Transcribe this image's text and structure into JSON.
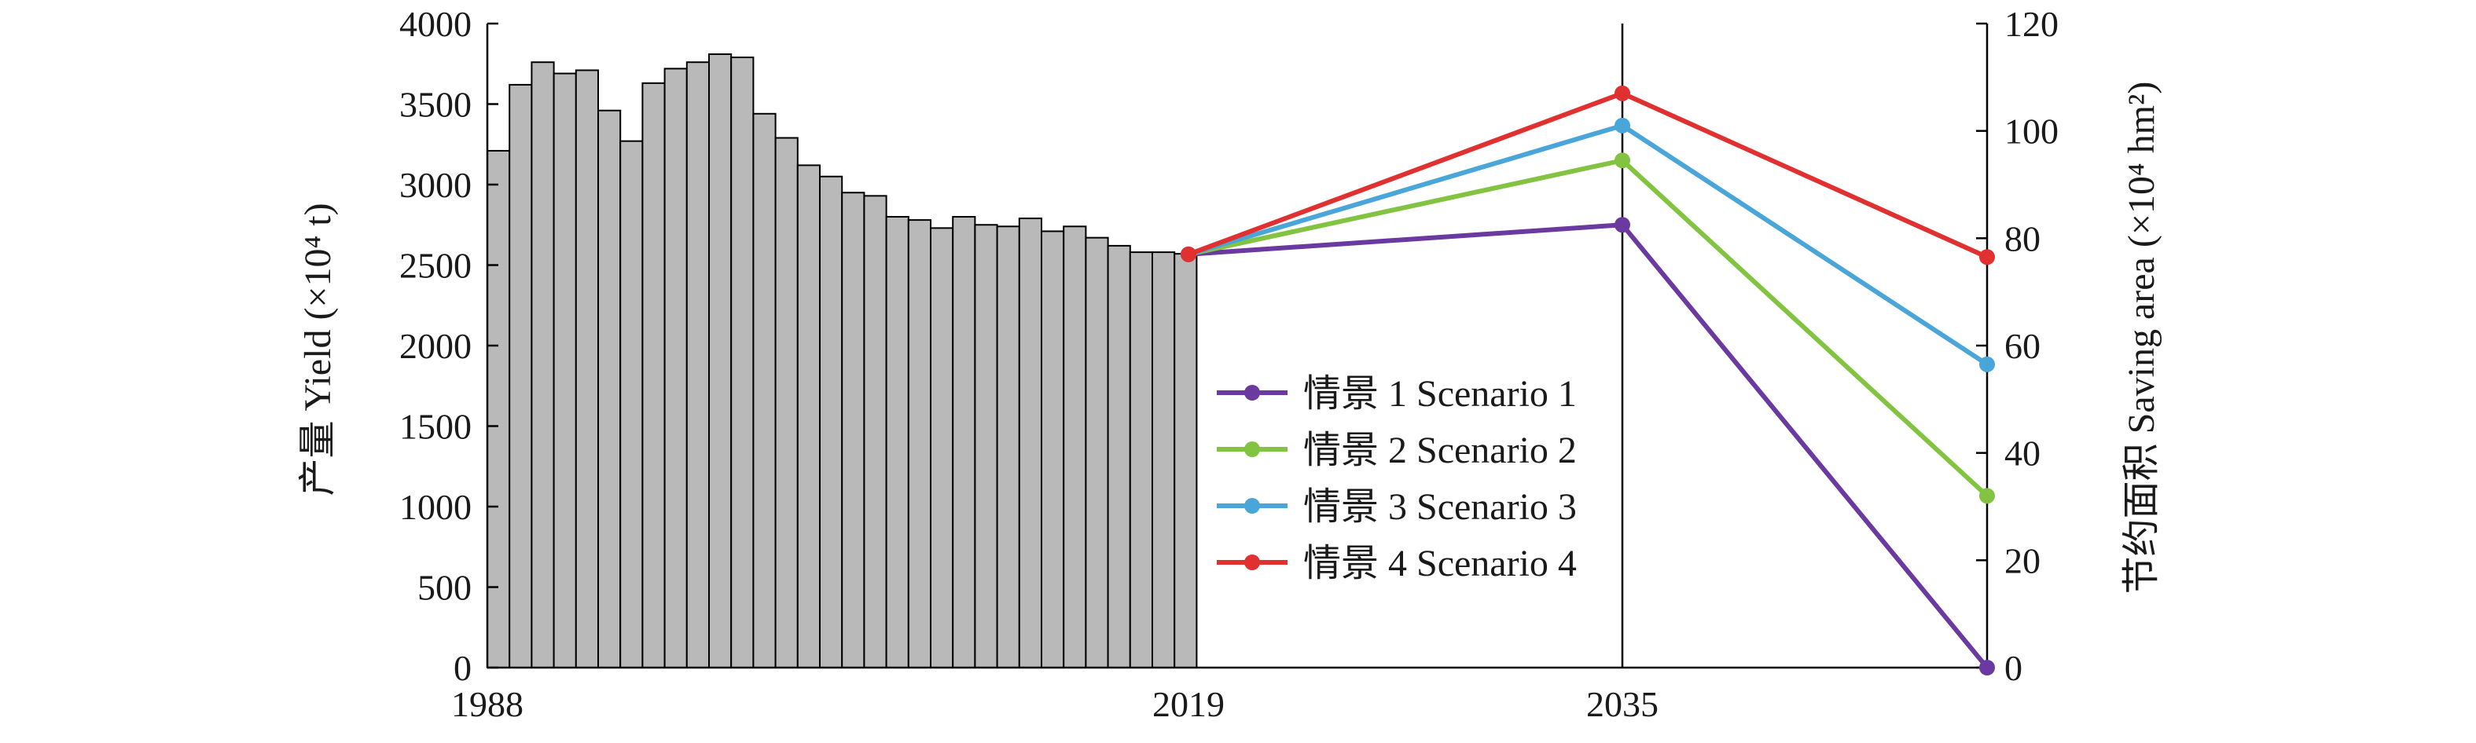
{
  "chart_data": {
    "type": "bar",
    "title": "",
    "bars": {
      "years": [
        1988,
        1989,
        1990,
        1991,
        1992,
        1993,
        1994,
        1995,
        1996,
        1997,
        1998,
        1999,
        2000,
        2001,
        2002,
        2003,
        2004,
        2005,
        2006,
        2007,
        2008,
        2009,
        2010,
        2011,
        2012,
        2013,
        2014,
        2015,
        2016,
        2017,
        2018,
        2019
      ],
      "values": [
        3210,
        3620,
        3760,
        3690,
        3710,
        3460,
        3270,
        3630,
        3720,
        3760,
        3810,
        3790,
        3440,
        3290,
        3120,
        3050,
        2950,
        2930,
        2800,
        2780,
        2730,
        2800,
        2750,
        2740,
        2790,
        2710,
        2740,
        2670,
        2620,
        2580,
        2580,
        2570
      ]
    },
    "x_ticks": [
      "1988",
      "2019",
      "2035"
    ],
    "y_left": {
      "label": "产量 Yield (×10⁴ t)",
      "ticks": [
        "0",
        "500",
        "1000",
        "1500",
        "2000",
        "2500",
        "3000",
        "3500",
        "4000"
      ],
      "range": [
        0,
        4000
      ]
    },
    "y_right": {
      "label": "节约面积 Saving area (×10⁴ hm²)",
      "ticks": [
        "0",
        "20",
        "40",
        "60",
        "80",
        "100",
        "120"
      ],
      "range": [
        0,
        120
      ]
    },
    "series": [
      {
        "name": "情景 1 Scenario 1",
        "color": "#6a3aa0",
        "values": [
          77,
          82.5,
          0
        ]
      },
      {
        "name": "情景 2 Scenario 2",
        "color": "#82c341",
        "values": [
          77,
          94.5,
          32
        ]
      },
      {
        "name": "情景 3 Scenario 3",
        "color": "#4aa6d9",
        "values": [
          77,
          101,
          56.5
        ]
      },
      {
        "name": "情景 4 Scenario 4",
        "color": "#e03030",
        "values": [
          77,
          107,
          76.5
        ]
      }
    ],
    "scenario_x": [
      "2019",
      "2035",
      ""
    ],
    "legend_position": "center"
  }
}
